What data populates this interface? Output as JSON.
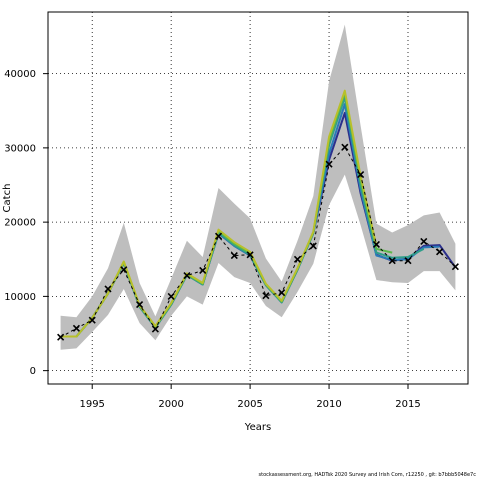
{
  "chart_data": {
    "type": "line",
    "xlabel": "Years",
    "ylabel": "Catch",
    "xlim": [
      1992.2,
      2018.8
    ],
    "ylim": [
      -1800,
      48300
    ],
    "x_ticks": [
      1995,
      2000,
      2005,
      2010,
      2015
    ],
    "y_ticks": [
      0,
      10000,
      20000,
      30000,
      40000
    ],
    "grid": true,
    "colors": {
      "band": "#bebebe",
      "observed": "#000000",
      "series": [
        "#2b2f8c",
        "#2a7ab8",
        "#2f9e8a",
        "#5cb84a",
        "#b8c02a"
      ]
    },
    "observed": {
      "x": [
        1993,
        1994,
        1995,
        1996,
        1997,
        1998,
        1999,
        2000,
        2001,
        2002,
        2003,
        2004,
        2005,
        2006,
        2007,
        2008,
        2009,
        2010,
        2011,
        2012,
        2013,
        2014,
        2015,
        2016,
        2017,
        2018
      ],
      "y": [
        4500,
        5700,
        6800,
        11000,
        13600,
        8900,
        5600,
        10000,
        12800,
        13500,
        18100,
        15500,
        15600,
        10100,
        10500,
        15000,
        16800,
        27800,
        30100,
        26400,
        17000,
        14800,
        14800,
        17400,
        16000,
        14000
      ]
    },
    "band": {
      "x": [
        1993,
        1994,
        1995,
        1996,
        1997,
        1998,
        1999,
        2000,
        2001,
        2002,
        2003,
        2004,
        2005,
        2006,
        2007,
        2008,
        2009,
        2010,
        2011,
        2012,
        2013,
        2014,
        2015,
        2016,
        2017,
        2018
      ],
      "upper": [
        7400,
        7200,
        10000,
        13800,
        19900,
        11800,
        7300,
        12400,
        17500,
        15300,
        24600,
        22500,
        20500,
        15100,
        12000,
        17500,
        23500,
        39000,
        46600,
        33000,
        19800,
        18600,
        19600,
        20900,
        21300,
        17100
      ],
      "lower": [
        2800,
        3000,
        5200,
        7500,
        11000,
        6400,
        4100,
        7400,
        10000,
        8900,
        14500,
        12600,
        11800,
        8700,
        7200,
        10600,
        14400,
        22300,
        26400,
        19600,
        12200,
        11900,
        11800,
        13400,
        13400,
        10800
      ]
    },
    "series": [
      {
        "x": [
          1993,
          1994,
          1995,
          1996,
          1997,
          1998,
          1999,
          2000,
          2001,
          2002,
          2003,
          2004,
          2005,
          2006,
          2007,
          2008,
          2009,
          2010,
          2011,
          2012,
          2013,
          2014,
          2015,
          2016,
          2017,
          2018
        ],
        "values": [
          4600,
          4600,
          7100,
          10400,
          14500,
          8600,
          5800,
          8900,
          12900,
          11600,
          18500,
          16800,
          15500,
          11500,
          9200,
          13600,
          18500,
          28400,
          34700,
          23900,
          15600,
          14800,
          15100,
          16800,
          16900,
          13900
        ]
      },
      {
        "x": [
          1993,
          1994,
          1995,
          1996,
          1997,
          1998,
          1999,
          2000,
          2001,
          2002,
          2003,
          2004,
          2005,
          2006,
          2007,
          2008,
          2009,
          2010,
          2011,
          2012,
          2013,
          2014,
          2015,
          2016,
          2017
        ],
        "values": [
          4600,
          4600,
          7100,
          10400,
          14500,
          8600,
          5800,
          8900,
          12900,
          11600,
          18500,
          16800,
          15500,
          11500,
          9200,
          13600,
          18500,
          29200,
          35900,
          24400,
          15500,
          14900,
          15000,
          16600,
          16700
        ]
      },
      {
        "x": [
          1993,
          1994,
          1995,
          1996,
          1997,
          1998,
          1999,
          2000,
          2001,
          2002,
          2003,
          2004,
          2005,
          2006,
          2007,
          2008,
          2009,
          2010,
          2011,
          2012,
          2013,
          2014,
          2015,
          2016
        ],
        "values": [
          4600,
          4600,
          7100,
          10400,
          14500,
          8600,
          5800,
          8900,
          12900,
          11600,
          18600,
          16900,
          15600,
          11500,
          9200,
          13600,
          18500,
          30400,
          36800,
          25000,
          15900,
          15200,
          15300,
          16400
        ]
      },
      {
        "x": [
          1993,
          1994,
          1995,
          1996,
          1997,
          1998,
          1999,
          2000,
          2001,
          2002,
          2003,
          2004,
          2005,
          2006,
          2007,
          2008,
          2009,
          2010,
          2011,
          2012,
          2013,
          2014
        ],
        "values": [
          4600,
          4600,
          7100,
          10400,
          14600,
          8700,
          5900,
          9000,
          13000,
          11700,
          18800,
          17100,
          15800,
          11600,
          9300,
          13700,
          18600,
          31000,
          37400,
          25600,
          16400,
          15900
        ]
      },
      {
        "x": [
          1993,
          1994,
          1995,
          1996,
          1997,
          1998,
          1999,
          2000,
          2001,
          2002,
          2003,
          2004,
          2005,
          2006,
          2007,
          2008,
          2009,
          2010,
          2011,
          2012,
          2013
        ],
        "values": [
          4600,
          4600,
          7100,
          10400,
          14700,
          8800,
          6000,
          9100,
          13100,
          11800,
          19000,
          17300,
          16000,
          11700,
          9400,
          13800,
          18700,
          31500,
          37700,
          26200,
          16800
        ]
      }
    ],
    "footer": "stockassessment.org, HADTsk 2020 Survey and Irish Com, r12250 , git: b7bbb5048e7c"
  }
}
